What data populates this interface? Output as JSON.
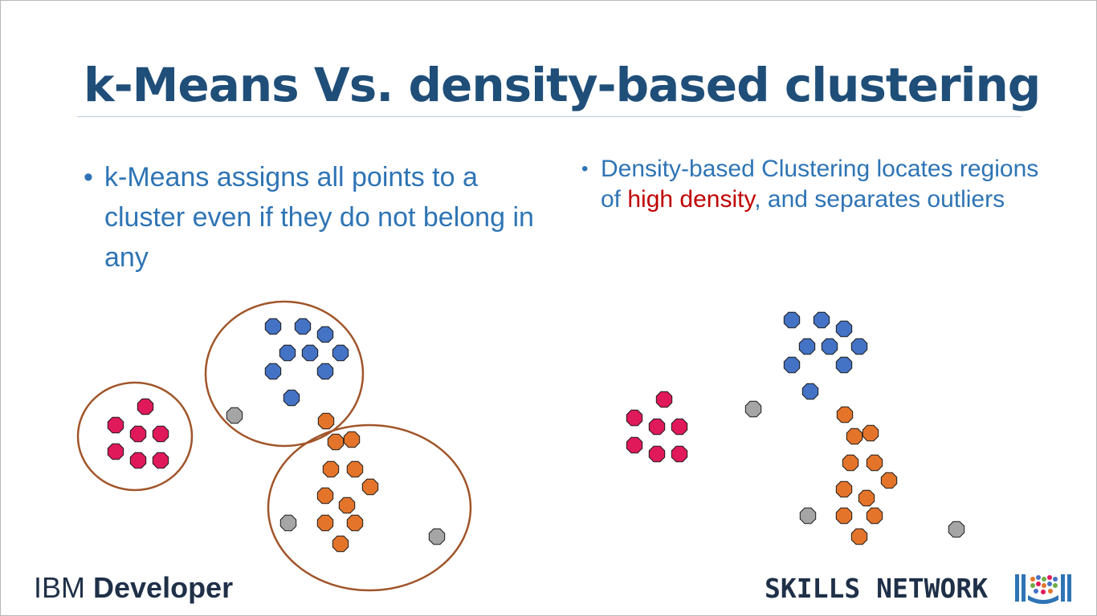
{
  "title": "k-Means Vs. density-based clustering",
  "left_bullet": {
    "bullet": "•",
    "text": "k-Means assigns all points to a cluster even if they do not belong in any"
  },
  "right_bullet": {
    "bullet": "•",
    "text_before": "Density-based Clustering locates regions of ",
    "highlight": "high density",
    "text_after": ", and separates outliers"
  },
  "footer": {
    "ibm_light": "IBM ",
    "ibm_bold": "Developer",
    "skills": "SKILLS NETWORK"
  },
  "colors": {
    "title": "#1f4e79",
    "bullet": "#2e74b5",
    "highlight": "#c00000",
    "blue_points": "#4472c4",
    "red_points": "#e0195a",
    "orange_points": "#e3742a",
    "gray_points": "#a5a5a5",
    "cluster_outline": "#a0552a"
  },
  "icons": [
    "library-logo-icon"
  ]
}
